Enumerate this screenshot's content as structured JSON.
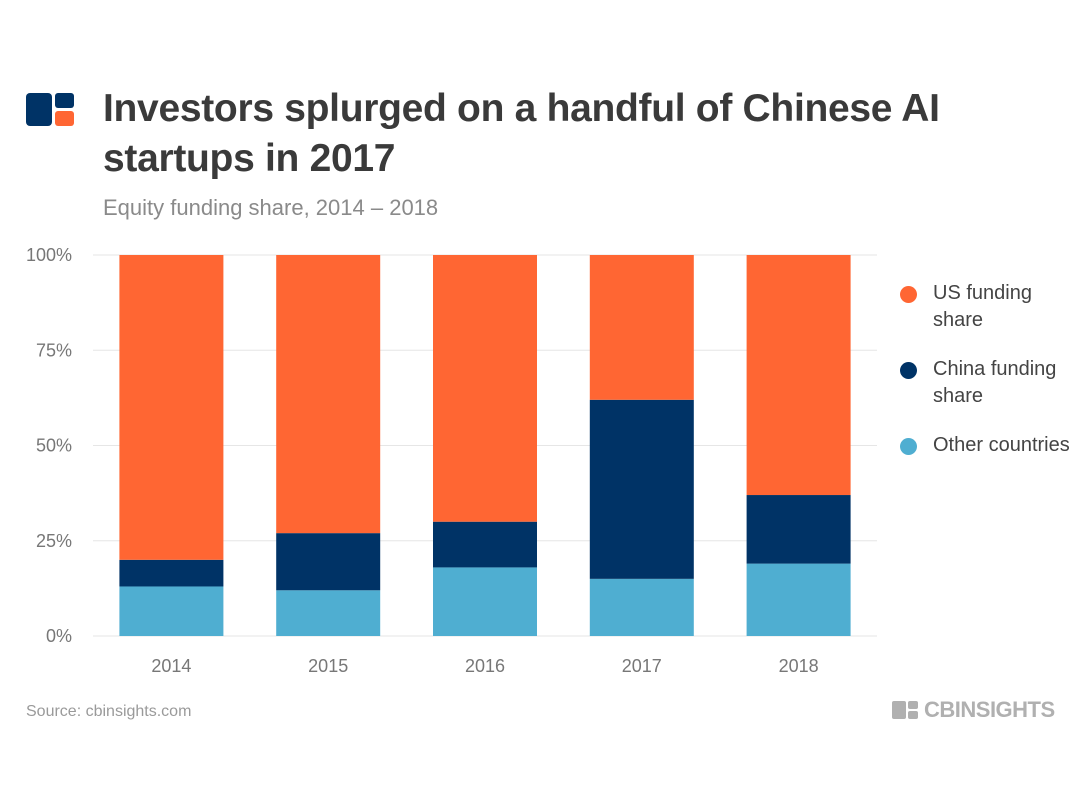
{
  "header": {
    "title": "Investors splurged on a handful of Chinese AI startups in 2017",
    "subtitle": "Equity funding share, 2014 – 2018",
    "logo_icon": "cb-insights-logo-icon"
  },
  "footer": {
    "source": "Source: cbinsights.com",
    "brand": "CBINSIGHTS"
  },
  "colors": {
    "us": "#ff6633",
    "china": "#003366",
    "other": "#4faed1",
    "grid": "#e6e6e6"
  },
  "chart_data": {
    "type": "bar",
    "stacked": true,
    "title": "Investors splurged on a handful of Chinese AI startups in 2017",
    "subtitle": "Equity funding share, 2014 – 2018",
    "categories": [
      "2014",
      "2015",
      "2016",
      "2017",
      "2018"
    ],
    "series": [
      {
        "name": "Other countries",
        "key": "other",
        "values": [
          13,
          12,
          18,
          15,
          19
        ]
      },
      {
        "name": "China funding share",
        "key": "china",
        "values": [
          7,
          15,
          12,
          47,
          18
        ]
      },
      {
        "name": "US funding share",
        "key": "us",
        "values": [
          80,
          73,
          70,
          38,
          63
        ]
      }
    ],
    "legend_order": [
      "US funding share",
      "China funding share",
      "Other countries"
    ],
    "y_ticks": [
      "0%",
      "25%",
      "50%",
      "75%",
      "100%"
    ],
    "ylim": [
      0,
      100
    ],
    "grid": true,
    "legend_position": "right",
    "xlabel": "",
    "ylabel": ""
  }
}
